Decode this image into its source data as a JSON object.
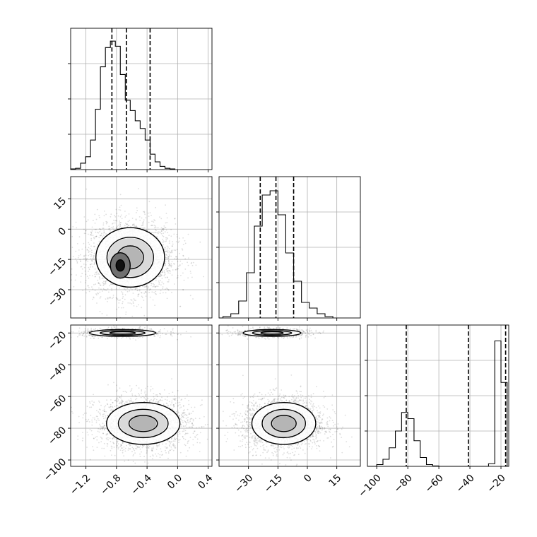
{
  "chart_data": [
    {
      "type": "histogram",
      "panel": "p1-marginal",
      "xlim": [
        -1.4,
        0.45
      ],
      "bin_start": -1.4,
      "bin_width": 0.065,
      "counts": [
        0.05,
        0.1,
        0.5,
        1.0,
        2.3,
        4.7,
        8.0,
        9.5,
        10.0,
        9.6,
        7.4,
        5.4,
        4.6,
        3.8,
        3.2,
        2.3,
        1.2,
        0.6,
        0.25,
        0.1,
        0.05
      ],
      "ymax": 11,
      "quantiles": [
        -0.86,
        -0.67,
        -0.36
      ],
      "x_tick_values": [
        -1.2,
        -0.8,
        -0.4,
        0.0,
        0.4
      ],
      "x_tick_labels": [
        "−1.2",
        "−0.8",
        "−0.4",
        "0.0",
        "0.4"
      ]
    },
    {
      "type": "histogram",
      "panel": "p2-marginal",
      "xlim": [
        -45,
        27
      ],
      "bin_start": -43,
      "bin_width": 4,
      "counts": [
        0.1,
        0.3,
        1.2,
        3.2,
        6.5,
        8.7,
        9.0,
        7.3,
        4.6,
        2.6,
        1.1,
        0.7,
        0.3,
        0.1
      ],
      "ymax": 10,
      "quantiles": [
        -24,
        -16,
        -7
      ],
      "x_tick_values": [
        -30,
        -15,
        0,
        15
      ],
      "x_tick_labels": [
        "−30",
        "−15",
        "0",
        "15"
      ]
    },
    {
      "type": "histogram",
      "panel": "p3-marginal",
      "xlim": [
        -106,
        -15
      ],
      "bin_start": -100,
      "bin_width": 4,
      "counts": [
        0.2,
        0.8,
        2.1,
        4.0,
        6.1,
        5.4,
        2.9,
        1.0,
        0.2,
        0.05,
        0,
        0,
        0,
        0,
        0,
        0,
        0,
        0,
        0.3,
        14.2,
        9.5
      ],
      "ymax": 16,
      "quantiles": [
        -81,
        -41,
        -17
      ],
      "x_tick_values": [
        -100,
        -80,
        -60,
        -40,
        -20
      ],
      "x_tick_labels": [
        "−100",
        "−80",
        "−60",
        "−40",
        "−20"
      ]
    },
    {
      "type": "scatter-density",
      "panel": "p2-vs-p1",
      "xlim": [
        -1.4,
        0.45
      ],
      "ylim": [
        -44,
        26
      ],
      "y_tick_values": [
        15,
        0,
        -15,
        -30
      ],
      "y_tick_labels": [
        "15",
        "0",
        "−15",
        "−30"
      ],
      "clusters": [
        {
          "x": -0.62,
          "y": -14,
          "sx": 0.29,
          "sy": 9.5,
          "n": 2600
        }
      ],
      "peak": {
        "x": -0.75,
        "y": -18
      }
    },
    {
      "type": "scatter-density",
      "panel": "p3-vs-p1",
      "xlim": [
        -1.4,
        0.45
      ],
      "ylim": [
        -104,
        -15
      ],
      "y_tick_values": [
        -20,
        -40,
        -60,
        -80,
        -100
      ],
      "y_tick_labels": [
        "−20",
        "−40",
        "−60",
        "−80",
        "−100"
      ],
      "clusters": [
        {
          "x": -0.72,
          "y": -20,
          "sx": 0.28,
          "sy": 1.4,
          "n": 700
        },
        {
          "x": -0.45,
          "y": -77,
          "sx": 0.31,
          "sy": 8.5,
          "n": 2200
        }
      ]
    },
    {
      "type": "scatter-density",
      "panel": "p3-vs-p2",
      "xlim": [
        -45,
        27
      ],
      "ylim": [
        -104,
        -15
      ],
      "clusters": [
        {
          "x": -18,
          "y": -20,
          "sx": 9.5,
          "sy": 1.4,
          "n": 700
        },
        {
          "x": -12,
          "y": -77,
          "sx": 10.5,
          "sy": 8.5,
          "n": 2200
        }
      ]
    }
  ]
}
